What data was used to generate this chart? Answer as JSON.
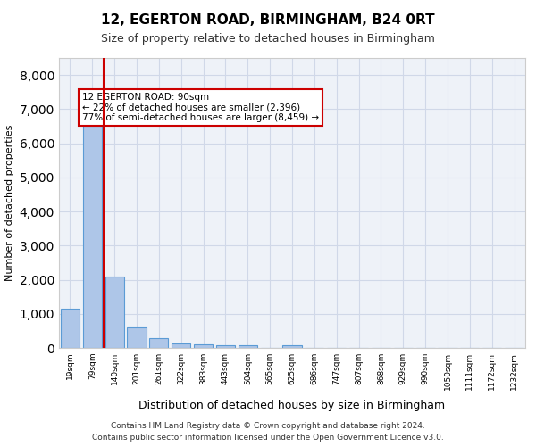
{
  "title1": "12, EGERTON ROAD, BIRMINGHAM, B24 0RT",
  "title2": "Size of property relative to detached houses in Birmingham",
  "xlabel": "Distribution of detached houses by size in Birmingham",
  "ylabel": "Number of detached properties",
  "categories": [
    "19sqm",
    "79sqm",
    "140sqm",
    "201sqm",
    "261sqm",
    "322sqm",
    "383sqm",
    "443sqm",
    "504sqm",
    "565sqm",
    "625sqm",
    "686sqm",
    "747sqm",
    "807sqm",
    "868sqm",
    "929sqm",
    "990sqm",
    "1050sqm",
    "1111sqm",
    "1172sqm",
    "1232sqm"
  ],
  "values": [
    1150,
    6500,
    2100,
    600,
    300,
    140,
    100,
    70,
    70,
    0,
    70,
    0,
    0,
    0,
    0,
    0,
    0,
    0,
    0,
    0,
    0
  ],
  "bar_color": "#aec6e8",
  "bar_edge_color": "#5b9bd5",
  "property_line_x": 1,
  "annotation_title": "12 EGERTON ROAD: 90sqm",
  "annotation_line1": "← 22% of detached houses are smaller (2,396)",
  "annotation_line2": "77% of semi-detached houses are larger (8,459) →",
  "annotation_box_color": "#ffffff",
  "annotation_box_edge": "#cc0000",
  "property_line_color": "#cc0000",
  "ylim": [
    0,
    8500
  ],
  "yticks": [
    0,
    1000,
    2000,
    3000,
    4000,
    5000,
    6000,
    7000,
    8000
  ],
  "grid_color": "#d0d8e8",
  "background_color": "#eef2f8",
  "footer1": "Contains HM Land Registry data © Crown copyright and database right 2024.",
  "footer2": "Contains public sector information licensed under the Open Government Licence v3.0."
}
